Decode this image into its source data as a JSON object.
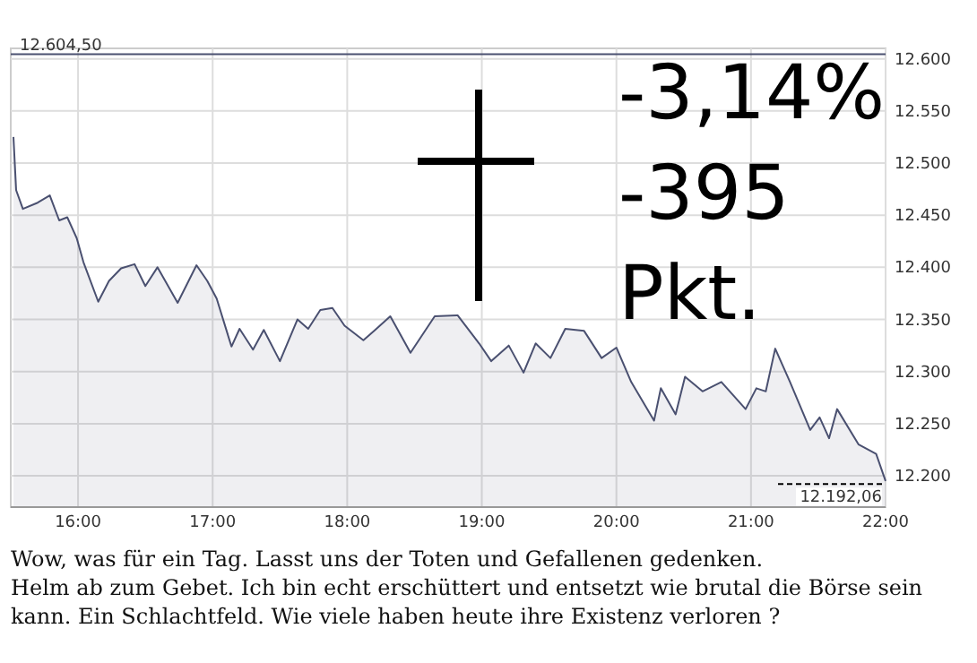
{
  "chart_data": {
    "type": "area",
    "x": [
      15.52,
      15.54,
      15.59,
      15.7,
      15.79,
      15.86,
      15.92,
      15.99,
      16.04,
      16.15,
      16.23,
      16.32,
      16.42,
      16.5,
      16.59,
      16.74,
      16.88,
      16.96,
      17.03,
      17.14,
      17.2,
      17.3,
      17.38,
      17.5,
      17.63,
      17.71,
      17.8,
      17.89,
      17.98,
      18.12,
      18.2,
      18.32,
      18.47,
      18.65,
      18.82,
      18.98,
      19.07,
      19.2,
      19.31,
      19.4,
      19.51,
      19.62,
      19.76,
      19.89,
      20.0,
      20.11,
      20.28,
      20.33,
      20.44,
      20.51,
      20.64,
      20.78,
      20.96,
      21.04,
      21.11,
      21.18,
      21.29,
      21.44,
      21.51,
      21.58,
      21.64,
      21.8,
      21.93,
      22.0
    ],
    "series": [
      {
        "color": "#4a5070",
        "values": [
          12525,
          12474,
          12456,
          12462,
          12469,
          12445,
          12448,
          12428,
          12405,
          12367,
          12387,
          12399,
          12403,
          12382,
          12400,
          12366,
          12402,
          12387,
          12370,
          12324,
          12341,
          12321,
          12340,
          12310,
          12350,
          12341,
          12359,
          12361,
          12344,
          12330,
          12339,
          12353,
          12318,
          12353,
          12354,
          12327,
          12310,
          12325,
          12299,
          12327,
          12313,
          12341,
          12339,
          12313,
          12323,
          12290,
          12253,
          12284,
          12259,
          12295,
          12281,
          12290,
          12264,
          12284,
          12281,
          12322,
          12290,
          12244,
          12256,
          12236,
          12264,
          12230,
          12221,
          12195
        ]
      }
    ],
    "xlim": [
      15.5,
      22.0
    ],
    "xticks": [
      {
        "value": 16,
        "label": "16:00"
      },
      {
        "value": 17,
        "label": "17:00"
      },
      {
        "value": 18,
        "label": "18:00"
      },
      {
        "value": 19,
        "label": "19:00"
      },
      {
        "value": 20,
        "label": "20:00"
      },
      {
        "value": 21,
        "label": "21:00"
      },
      {
        "value": 22,
        "label": "22:00"
      }
    ],
    "ylim": [
      12170,
      12610
    ],
    "yticks": [
      {
        "value": 12200,
        "label": "12.200"
      },
      {
        "value": 12250,
        "label": "12.250"
      },
      {
        "value": 12300,
        "label": "12.300"
      },
      {
        "value": 12350,
        "label": "12.350"
      },
      {
        "value": 12400,
        "label": "12.400"
      },
      {
        "value": 12450,
        "label": "12.450"
      },
      {
        "value": 12500,
        "label": "12.500"
      },
      {
        "value": 12550,
        "label": "12.550"
      },
      {
        "value": 12600,
        "label": "12.600"
      }
    ],
    "grid": true,
    "ref_lines": [
      {
        "axis": "y",
        "value": 12604.5,
        "label": "12.604,50",
        "color": "#4a5070"
      },
      {
        "axis": "y",
        "value": 12192.06,
        "label": "12.192,06",
        "color": "#000000",
        "line_style": "dashed"
      }
    ],
    "annotations": [
      "-3,14%",
      "-395",
      "Pkt.",
      "Wow, was für ein Tag. Lasst uns der Toten und Gefallenen gedenken.",
      "Helm ab zum Gebet. Ich bin echt erschüttert und entsetzt wie brutal die Börse sein",
      "kann. Ein Schlachtfeld. Wie viele haben heute ihre Existenz verloren ?"
    ]
  }
}
